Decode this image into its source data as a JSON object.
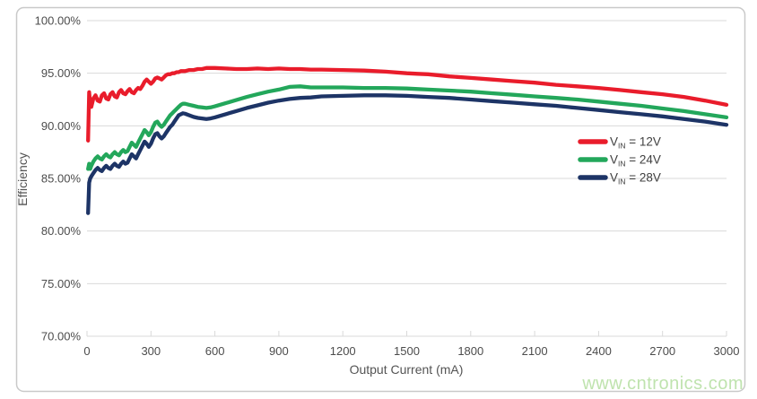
{
  "watermark": {
    "text": "www.cntronics.com",
    "color": "#bfe3ae"
  },
  "colors": {
    "background": "#ffffff",
    "card_border": "#c9c9c9",
    "grid": "#d9d9d9",
    "tick_text": "#4c4c4c",
    "axis_title_text": "#545454",
    "legend_text": "#3f3f3f"
  },
  "chart_data": {
    "type": "line",
    "title": "",
    "xlabel": "Output Current (mA)",
    "ylabel": "Efficiency",
    "xlim": [
      0,
      3000
    ],
    "ylim": [
      70,
      100
    ],
    "grid": "horizontal",
    "legend_position": "middle-right",
    "x_ticks": [
      {
        "v": 0,
        "label": "0"
      },
      {
        "v": 300,
        "label": "300"
      },
      {
        "v": 600,
        "label": "600"
      },
      {
        "v": 900,
        "label": "900"
      },
      {
        "v": 1200,
        "label": "1200"
      },
      {
        "v": 1500,
        "label": "1500"
      },
      {
        "v": 1800,
        "label": "1800"
      },
      {
        "v": 2100,
        "label": "2100"
      },
      {
        "v": 2400,
        "label": "2400"
      },
      {
        "v": 2700,
        "label": "2700"
      },
      {
        "v": 3000,
        "label": "3000"
      }
    ],
    "y_ticks": [
      {
        "v": 100,
        "label": "100.00%"
      },
      {
        "v": 95,
        "label": "95.00%"
      },
      {
        "v": 90,
        "label": "90.00%"
      },
      {
        "v": 85,
        "label": "85.00%"
      },
      {
        "v": 80,
        "label": "80.00%"
      },
      {
        "v": 75,
        "label": "75.00%"
      },
      {
        "v": 70,
        "label": "70.00%"
      }
    ],
    "x": [
      5,
      10,
      15,
      20,
      30,
      40,
      50,
      60,
      70,
      80,
      90,
      100,
      110,
      120,
      130,
      140,
      150,
      160,
      170,
      180,
      190,
      200,
      210,
      220,
      230,
      240,
      250,
      260,
      270,
      280,
      290,
      300,
      310,
      320,
      330,
      340,
      350,
      360,
      370,
      380,
      390,
      400,
      410,
      420,
      430,
      440,
      450,
      460,
      480,
      500,
      520,
      540,
      560,
      580,
      600,
      650,
      700,
      750,
      800,
      850,
      900,
      950,
      1000,
      1050,
      1100,
      1200,
      1300,
      1400,
      1500,
      1550,
      1600,
      1700,
      1800,
      1900,
      2000,
      2100,
      2200,
      2300,
      2400,
      2500,
      2600,
      2700,
      2800,
      2900,
      3000
    ],
    "series": [
      {
        "id": "vin-12v",
        "name": "VIN = 12V",
        "label_main": "V",
        "label_sub": "IN",
        "label_rest": " = 12V",
        "color": "#e91c2b",
        "values": [
          88.6,
          93.2,
          92.1,
          91.8,
          92.6,
          92.9,
          92.4,
          92.3,
          92.9,
          93.1,
          92.6,
          92.5,
          93.0,
          93.2,
          92.8,
          92.7,
          93.2,
          93.4,
          93.1,
          93.0,
          93.3,
          93.5,
          93.2,
          93.1,
          93.4,
          93.6,
          93.5,
          93.8,
          94.2,
          94.4,
          94.2,
          94.0,
          94.2,
          94.5,
          94.6,
          94.5,
          94.4,
          94.6,
          94.8,
          94.9,
          94.9,
          95.0,
          95.0,
          95.1,
          95.1,
          95.2,
          95.2,
          95.2,
          95.3,
          95.3,
          95.4,
          95.4,
          95.5,
          95.5,
          95.5,
          95.45,
          95.4,
          95.4,
          95.45,
          95.4,
          95.45,
          95.4,
          95.4,
          95.35,
          95.35,
          95.3,
          95.25,
          95.15,
          95.0,
          94.95,
          94.9,
          94.7,
          94.55,
          94.4,
          94.25,
          94.1,
          93.9,
          93.75,
          93.6,
          93.4,
          93.2,
          93.0,
          92.75,
          92.4,
          92.0
        ]
      },
      {
        "id": "vin-24v",
        "name": "VIN = 24V",
        "label_main": "V",
        "label_sub": "IN",
        "label_rest": " = 24V",
        "color": "#23a75b",
        "values": [
          85.9,
          86.4,
          85.9,
          86.2,
          86.6,
          86.9,
          87.1,
          86.9,
          86.8,
          87.1,
          87.3,
          87.1,
          87.0,
          87.3,
          87.5,
          87.3,
          87.2,
          87.5,
          87.7,
          87.5,
          87.6,
          88.0,
          88.4,
          88.2,
          88.0,
          88.4,
          88.8,
          89.2,
          89.6,
          89.4,
          89.1,
          89.4,
          89.9,
          90.3,
          90.4,
          90.1,
          89.9,
          90.1,
          90.4,
          90.7,
          91.0,
          91.2,
          91.4,
          91.6,
          91.8,
          92.0,
          92.1,
          92.1,
          92.0,
          91.9,
          91.8,
          91.75,
          91.7,
          91.75,
          91.85,
          92.15,
          92.45,
          92.75,
          93.0,
          93.25,
          93.45,
          93.7,
          93.75,
          93.65,
          93.65,
          93.65,
          93.6,
          93.6,
          93.55,
          93.5,
          93.45,
          93.35,
          93.25,
          93.1,
          92.95,
          92.8,
          92.65,
          92.5,
          92.3,
          92.1,
          91.9,
          91.65,
          91.4,
          91.1,
          90.8
        ]
      },
      {
        "id": "vin-28v",
        "name": "VIN = 28V",
        "label_main": "V",
        "label_sub": "IN",
        "label_rest": " = 28V",
        "color": "#1d3466",
        "values": [
          81.7,
          84.6,
          85.0,
          85.2,
          85.5,
          85.8,
          86.0,
          85.8,
          85.7,
          86.0,
          86.2,
          86.0,
          85.9,
          86.2,
          86.4,
          86.2,
          86.1,
          86.4,
          86.6,
          86.4,
          86.5,
          86.9,
          87.3,
          87.1,
          86.9,
          87.3,
          87.7,
          88.1,
          88.5,
          88.3,
          88.0,
          88.3,
          88.8,
          89.2,
          89.3,
          89.0,
          88.8,
          89.0,
          89.3,
          89.6,
          89.9,
          90.1,
          90.4,
          90.7,
          91.0,
          91.1,
          91.2,
          91.15,
          91.0,
          90.85,
          90.75,
          90.7,
          90.65,
          90.7,
          90.8,
          91.1,
          91.4,
          91.7,
          91.95,
          92.2,
          92.4,
          92.55,
          92.65,
          92.7,
          92.8,
          92.85,
          92.9,
          92.9,
          92.85,
          92.8,
          92.75,
          92.65,
          92.5,
          92.35,
          92.2,
          92.05,
          91.9,
          91.7,
          91.5,
          91.3,
          91.1,
          90.9,
          90.65,
          90.4,
          90.1
        ]
      }
    ]
  }
}
